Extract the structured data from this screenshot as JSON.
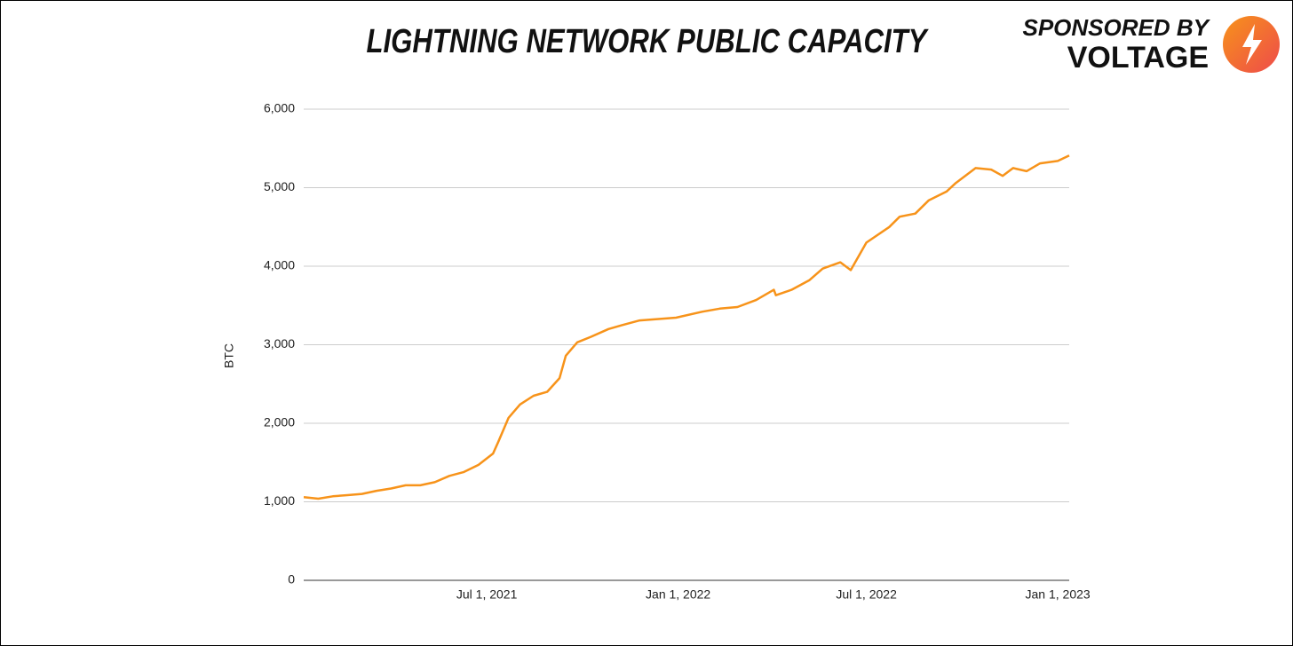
{
  "chart_data": {
    "type": "line",
    "title": "LIGHTNING NETWORK PUBLIC CAPACITY",
    "sponsor_line": "SPONSORED BY",
    "sponsor_name": "VOLTAGE",
    "y_label": "BTC",
    "color": "#f7931a",
    "grid": true,
    "x": [
      "2021-01-06",
      "2021-01-20",
      "2021-02-03",
      "2021-02-17",
      "2021-03-03",
      "2021-03-17",
      "2021-03-31",
      "2021-04-14",
      "2021-04-28",
      "2021-05-12",
      "2021-05-26",
      "2021-06-09",
      "2021-06-23",
      "2021-07-07",
      "2021-07-12",
      "2021-07-22",
      "2021-08-02",
      "2021-08-15",
      "2021-08-28",
      "2021-09-09",
      "2021-09-15",
      "2021-09-26",
      "2021-10-09",
      "2021-10-26",
      "2021-11-08",
      "2021-11-25",
      "2021-12-30",
      "2022-01-24",
      "2022-02-10",
      "2022-02-27",
      "2022-03-17",
      "2022-04-03",
      "2022-04-05",
      "2022-04-20",
      "2022-05-07",
      "2022-05-20",
      "2022-06-06",
      "2022-06-16",
      "2022-07-01",
      "2022-07-23",
      "2022-08-02",
      "2022-08-17",
      "2022-08-30",
      "2022-09-16",
      "2022-09-25",
      "2022-10-14",
      "2022-10-29",
      "2022-11-09",
      "2022-11-19",
      "2022-12-02",
      "2022-12-15",
      "2023-01-01",
      "2023-01-12"
    ],
    "values": [
      1060,
      1040,
      1070,
      1085,
      1100,
      1140,
      1170,
      1210,
      1210,
      1250,
      1330,
      1380,
      1470,
      1615,
      1760,
      2070,
      2240,
      2350,
      2400,
      2575,
      2860,
      3030,
      3100,
      3200,
      3250,
      3310,
      3345,
      3420,
      3460,
      3480,
      3570,
      3700,
      3630,
      3700,
      3820,
      3970,
      4050,
      3950,
      4300,
      4500,
      4630,
      4670,
      4840,
      4950,
      5060,
      5250,
      5230,
      5150,
      5250,
      5210,
      5310,
      5340,
      5410
    ],
    "xlim": [
      "2021-01-06",
      "2023-01-12"
    ],
    "xticks": [
      {
        "value": "2021-07-01",
        "label": "Jul 1, 2021"
      },
      {
        "value": "2022-01-01",
        "label": "Jan 1, 2022"
      },
      {
        "value": "2022-07-01",
        "label": "Jul 1, 2022"
      },
      {
        "value": "2023-01-01",
        "label": "Jan 1, 2023"
      }
    ],
    "ylim": [
      0,
      6000
    ],
    "yticks": [
      0,
      {
        "value": 1000,
        "label": "1,000"
      },
      {
        "value": 2000,
        "label": "2,000"
      },
      {
        "value": 3000,
        "label": "3,000"
      },
      {
        "value": 4000,
        "label": "4,000"
      },
      {
        "value": 5000,
        "label": "5,000"
      },
      {
        "value": 6000,
        "label": "6,000"
      }
    ]
  }
}
